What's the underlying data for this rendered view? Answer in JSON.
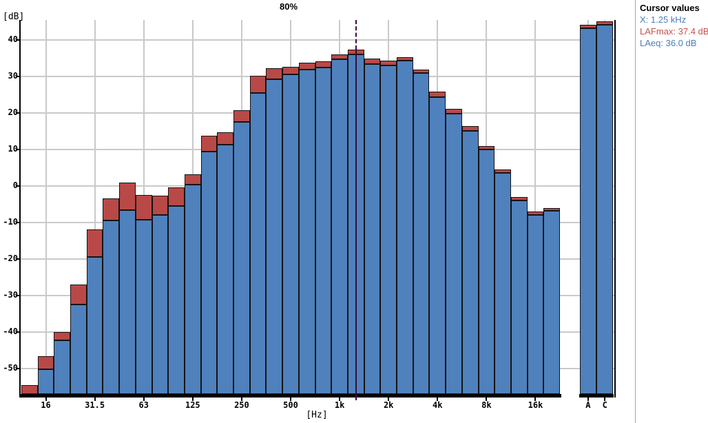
{
  "title": "80%",
  "y_axis": {
    "unit_label": "[dB]",
    "tick_values": [
      40,
      30,
      20,
      10,
      0,
      -10,
      -20,
      -30,
      -40,
      -50
    ],
    "range": {
      "min": -57.0,
      "max": 45.5
    }
  },
  "x_axis": {
    "unit_label": "[Hz]",
    "labeled_bands": [
      {
        "index": 1,
        "label": "16"
      },
      {
        "index": 4,
        "label": "31.5"
      },
      {
        "index": 7,
        "label": "63"
      },
      {
        "index": 10,
        "label": "125"
      },
      {
        "index": 13,
        "label": "250"
      },
      {
        "index": 16,
        "label": "500"
      },
      {
        "index": 19,
        "label": "1k"
      },
      {
        "index": 22,
        "label": "2k"
      },
      {
        "index": 25,
        "label": "4k"
      },
      {
        "index": 28,
        "label": "8k"
      },
      {
        "index": 31,
        "label": "16k"
      }
    ],
    "broadband_labels": [
      "A",
      "C"
    ]
  },
  "chart_data": {
    "type": "bar",
    "subtype": "third-octave-band-spectrum",
    "title": "80%",
    "xlabel": "[Hz]",
    "ylabel": "[dB]",
    "ylim": [
      -57.0,
      45.5
    ],
    "grid": true,
    "categories": [
      "12.5",
      "16",
      "20",
      "25",
      "31.5",
      "40",
      "50",
      "63",
      "80",
      "100",
      "125",
      "160",
      "200",
      "250",
      "315",
      "400",
      "500",
      "630",
      "800",
      "1k",
      "1.25k",
      "1.6k",
      "2k",
      "2.5k",
      "3.15k",
      "4k",
      "5k",
      "6.3k",
      "8k",
      "10k",
      "12.5k",
      "16k",
      "20k"
    ],
    "series": [
      {
        "name": "LAFmax",
        "color": "#b94947",
        "values": [
          -54.5,
          -46.6,
          -40.0,
          -27.0,
          -11.9,
          -3.3,
          0.9,
          -2.5,
          -2.7,
          -0.3,
          3.2,
          13.7,
          14.8,
          20.8,
          30.2,
          32.3,
          32.7,
          33.8,
          34.2,
          36.1,
          37.4,
          35.0,
          34.3,
          35.3,
          31.9,
          25.8,
          21.1,
          16.4,
          10.9,
          4.5,
          -3.0,
          -7.0,
          -6.0
        ]
      },
      {
        "name": "LAeq",
        "color": "#4f81bd",
        "values": [
          null,
          -50.2,
          -42.3,
          -32.5,
          -19.4,
          -9.5,
          -6.6,
          -9.3,
          -7.9,
          -5.5,
          0.4,
          9.4,
          11.3,
          17.5,
          25.5,
          29.3,
          30.6,
          31.9,
          32.5,
          34.8,
          36.0,
          33.4,
          33.1,
          34.4,
          31.0,
          24.3,
          19.9,
          15.2,
          10.0,
          3.6,
          -4.0,
          -7.9,
          -6.8
        ]
      }
    ],
    "broadband": {
      "categories": [
        "A",
        "C"
      ],
      "LAFmax": [
        44.2,
        45.1
      ],
      "LAeq": [
        43.3,
        44.2
      ]
    }
  },
  "cursor": {
    "band": "1.25k",
    "band_index": 20,
    "color": "#3b0a3b"
  },
  "cursor_panel": {
    "title": "Cursor values",
    "lines": [
      {
        "text": "X: 1.25 kHz",
        "color": "#4a7cba"
      },
      {
        "text": "LAFmax: 37.4 dB",
        "color": "#cb4f4d"
      },
      {
        "text": "LAeq: 36.0 dB",
        "color": "#4a7cba"
      }
    ]
  },
  "colors": {
    "grid": "#c9c9c9",
    "outline": "#141414",
    "axis": "#000000",
    "background": "#ffffff"
  }
}
